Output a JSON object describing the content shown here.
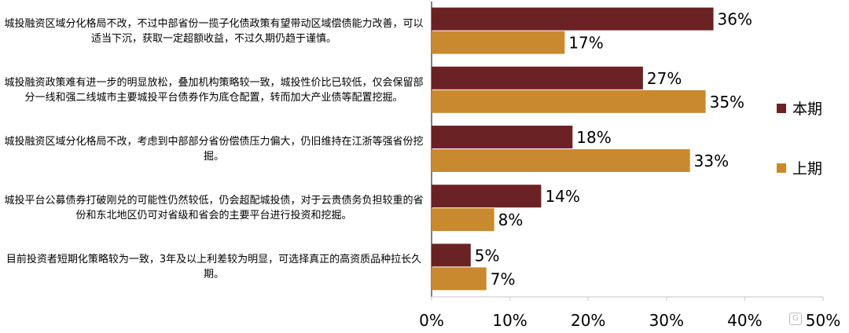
{
  "chart_data": {
    "type": "bar",
    "orientation": "horizontal",
    "categories": [
      "城投融资区域分化格局不改，不过中部省份一揽子化债政策有望带动区域偿债能力改善，可以适当下沉，获取一定超额收益，不过久期仍趋于谨慎。",
      "城投融资政策难有进一步的明显放松，叠加机构策略较一致，城投性价比已较低，仅会保留部分一线和强二线城市主要城投平台债券作为底仓配置，转而加大产业债等配置挖掘。",
      "城投融资区域分化格局不改，考虑到中部部分省份偿债压力偏大，仍旧维持在江浙等强省份挖掘。",
      "城投平台公募债券打破刚兑的可能性仍然较低，仍会超配城投债，对于云贵债务负担较重的省份和东北地区仍可对省级和省会的主要平台进行投资和挖掘。",
      "目前投资者短期化策略较为一致，3年及以上利差较为明显，可选择真正的高资质品种拉长久期。"
    ],
    "series": [
      {
        "name": "本期",
        "values": [
          36,
          27,
          18,
          14,
          5
        ],
        "labels": [
          "36%",
          "27%",
          "18%",
          "14%",
          "5%"
        ]
      },
      {
        "name": "上期",
        "values": [
          17,
          35,
          33,
          8,
          7
        ],
        "labels": [
          "17%",
          "35%",
          "33%",
          "8%",
          "7%"
        ]
      }
    ],
    "xlim": [
      0,
      50
    ],
    "xticks": [
      "0%",
      "10%",
      "20%",
      "30%",
      "40%",
      "50%"
    ],
    "legend_position": "right",
    "grid": false
  },
  "colors": {
    "current": "#6b2224",
    "previous": "#c8892f",
    "axis": "#d9d9d9"
  },
  "watermark_icon": "watermark-logo-icon"
}
